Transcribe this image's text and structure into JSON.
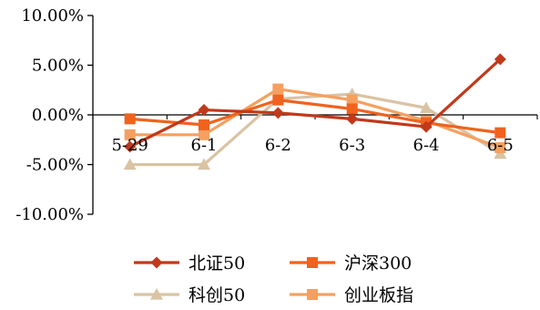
{
  "chart_data": {
    "type": "line",
    "title": "",
    "xlabel": "",
    "ylabel": "",
    "categories": [
      "5-29",
      "6-1",
      "6-2",
      "6-3",
      "6-4",
      "6-5"
    ],
    "ylim": [
      -10,
      10
    ],
    "y_ticks": [
      10,
      5,
      0,
      -5,
      -10
    ],
    "y_tick_labels": [
      "10.00%",
      "5.00%",
      "0.00%",
      "-5.00%",
      "-10.00%"
    ],
    "grid": false,
    "legend_position": "bottom",
    "series": [
      {
        "name": "北证50",
        "color": "#C0391B",
        "marker": "diamond",
        "values": [
          -3.2,
          0.5,
          0.2,
          -0.4,
          -1.2,
          5.6
        ]
      },
      {
        "name": "沪深300",
        "color": "#F0621E",
        "marker": "square",
        "values": [
          -0.4,
          -1.0,
          1.5,
          0.6,
          -0.8,
          -1.8
        ]
      },
      {
        "name": "科创50",
        "color": "#D9C3A3",
        "marker": "triangle",
        "values": [
          -5.0,
          -5.0,
          1.6,
          2.1,
          0.7,
          -3.9
        ]
      },
      {
        "name": "创业板指",
        "color": "#F5A060",
        "marker": "square",
        "values": [
          -2.0,
          -2.0,
          2.6,
          1.5,
          -0.6,
          -3.3
        ]
      }
    ]
  }
}
